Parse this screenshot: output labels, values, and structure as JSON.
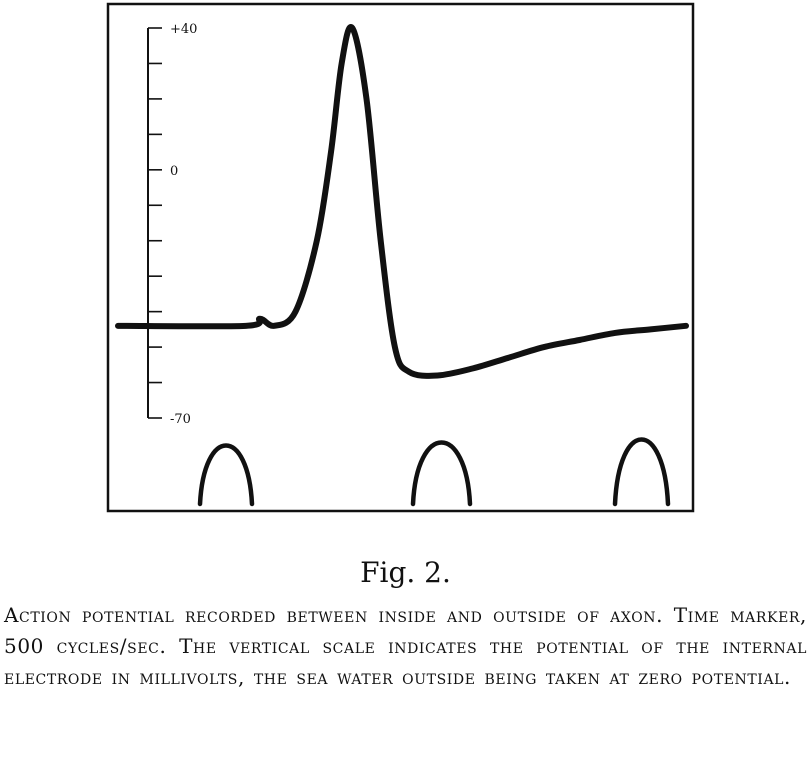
{
  "chart_data": {
    "type": "line",
    "title": "",
    "xlabel": "",
    "ylabel": "",
    "ylim": [
      -70,
      40
    ],
    "y_tick_labels": [
      "+40",
      "0",
      "-70"
    ],
    "y_tick_values": [
      40,
      0,
      -70
    ],
    "x_range_ms": [
      0,
      8
    ],
    "series": [
      {
        "x": [
          0,
          1.8,
          2.0,
          2.2,
          2.5,
          2.8,
          3.0,
          3.15,
          3.3,
          3.5,
          3.7,
          3.9,
          4.1,
          4.5,
          5.0,
          5.5,
          6.0,
          6.5,
          7.0,
          7.5,
          8.0
        ],
        "y": [
          -44,
          -44,
          -42,
          -44,
          -40,
          -20,
          5,
          30,
          40,
          20,
          -20,
          -50,
          -57,
          -58,
          -56,
          -53,
          -50,
          -48,
          -46,
          -45,
          -44
        ]
      }
    ],
    "time_marker": "500 cycles/sec"
  },
  "figure": {
    "label": "Fig. 2.",
    "caption": "Action potential recorded between inside and outside of axon.  Time marker, 500 cycles/sec. The vertical scale indicates the potential of the internal electrode in millivolts, the sea water outside being taken at zero potential."
  },
  "colors": {
    "ink": "#111111",
    "paper": "#ffffff"
  }
}
